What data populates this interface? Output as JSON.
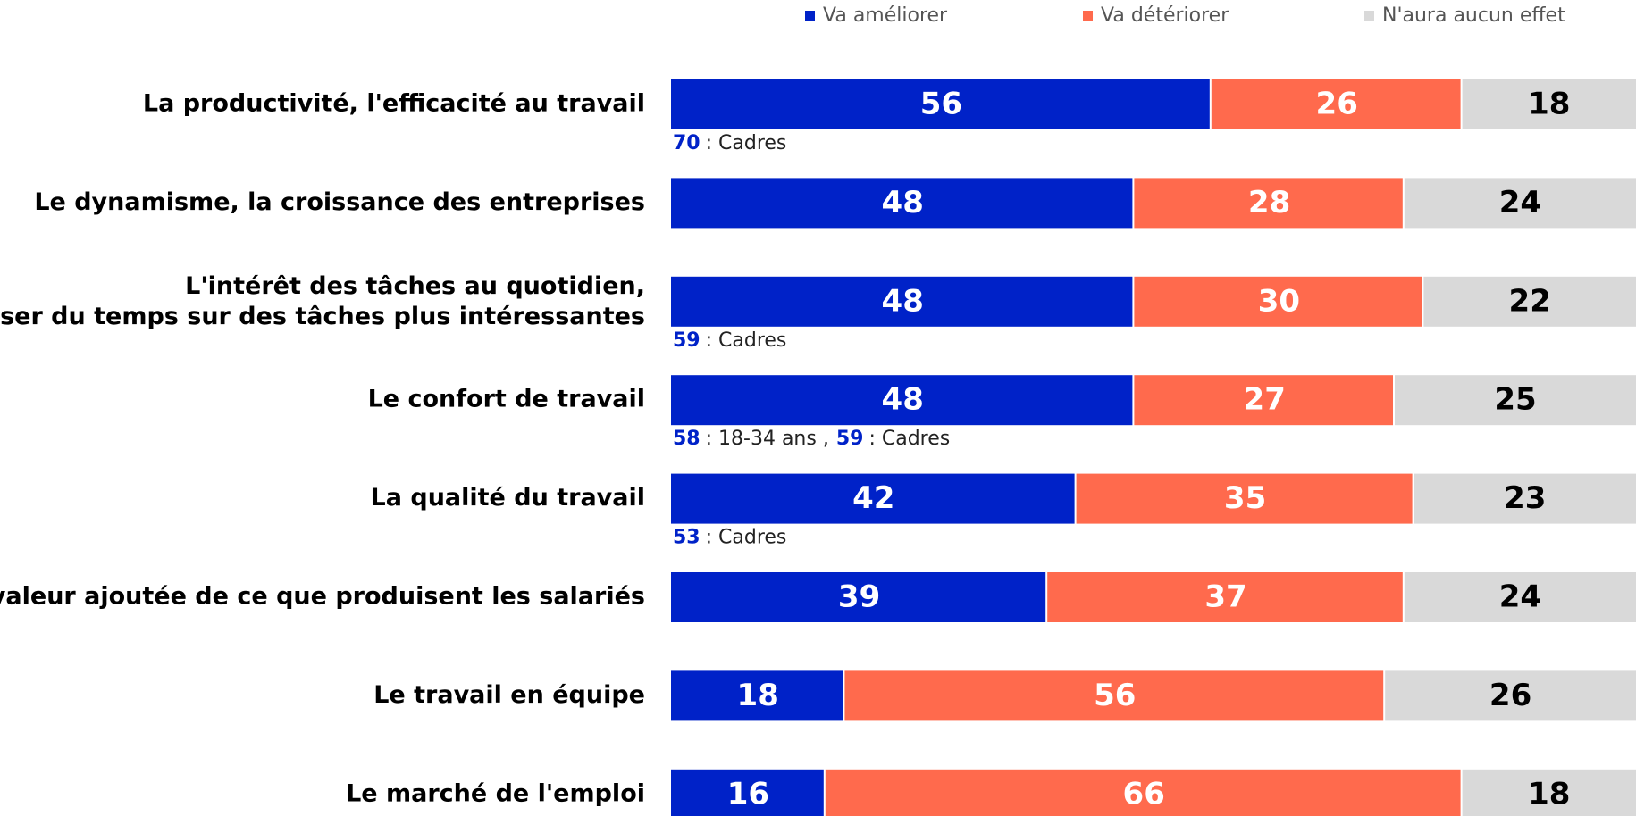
{
  "chart_data": {
    "type": "stacked-bar-horizontal",
    "categories": [
      "La productivité, l'efficacité au travail",
      "Le dynamisme, la croissance des entreprises",
      "L'intérêt des tâches au quotidien,\npasser du temps sur des tâches plus intéressantes",
      "Le confort de travail",
      "La qualité du travail",
      "La valeur ajoutée de ce que produisent les salariés",
      "Le travail en équipe",
      "Le marché de l'emploi"
    ],
    "series": [
      {
        "name": "Va améliorer",
        "color": "#0022c8",
        "text_color": "#ffffff",
        "values": [
          56,
          48,
          48,
          48,
          42,
          39,
          18,
          16
        ]
      },
      {
        "name": "Va détériorer",
        "color": "#ff6a4d",
        "text_color": "#ffffff",
        "values": [
          26,
          28,
          30,
          27,
          35,
          37,
          56,
          66
        ]
      },
      {
        "name": "N'aura aucun effet",
        "color": "#d9d9d9",
        "text_color": "#000000",
        "values": [
          18,
          24,
          22,
          25,
          23,
          24,
          26,
          18
        ]
      }
    ],
    "notes": [
      [
        {
          "value": 70,
          "text": ": Cadres"
        }
      ],
      null,
      [
        {
          "value": 59,
          "text": ": Cadres"
        }
      ],
      [
        {
          "value": 58,
          "text": ": 18-34 ans ,"
        },
        {
          "value": 59,
          "text": ": Cadres"
        }
      ],
      [
        {
          "value": 53,
          "text": ": Cadres"
        }
      ],
      null,
      null,
      null
    ],
    "note_color": "#0022c8",
    "xlim": [
      0,
      100
    ],
    "legend": "top-right"
  }
}
